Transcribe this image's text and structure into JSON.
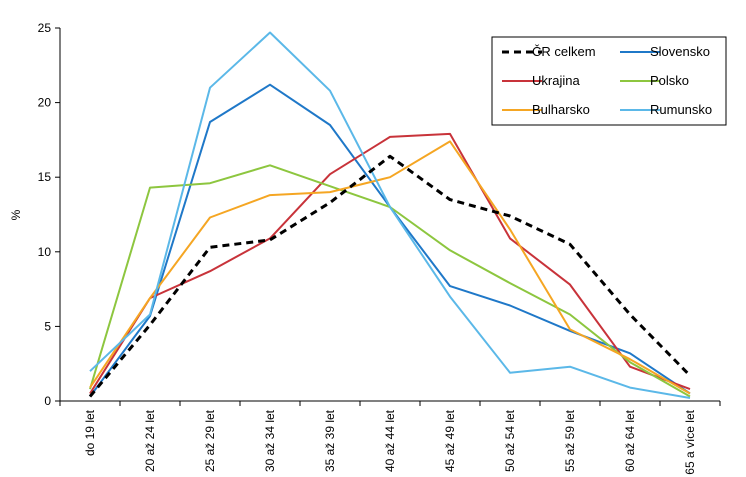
{
  "chart_data": {
    "type": "line",
    "ylabel": "%",
    "ylim": [
      0,
      25
    ],
    "yticks": [
      0,
      5,
      10,
      15,
      20,
      25
    ],
    "categories": [
      "do 19 let",
      "20 až 24 let",
      "25 až 29 let",
      "30 až 34 let",
      "35 až 39 let",
      "40 až 44 let",
      "45 až 49 let",
      "50 až 54 let",
      "55 až 59 let",
      "60 až 64 let",
      "65 a více let"
    ],
    "grid": false,
    "legend_position": "top-right",
    "series": [
      {
        "name": "ČR celkem",
        "color": "#000000",
        "dashed": true,
        "values": [
          0.3,
          5.1,
          10.3,
          10.8,
          13.3,
          16.4,
          13.5,
          12.4,
          10.5,
          5.8,
          1.7
        ]
      },
      {
        "name": "Slovensko",
        "color": "#1f78c8",
        "dashed": false,
        "values": [
          0.3,
          5.7,
          18.7,
          21.2,
          18.5,
          13.0,
          7.7,
          6.4,
          4.7,
          3.2,
          0.5
        ]
      },
      {
        "name": "Ukrajina",
        "color": "#c8333a",
        "dashed": false,
        "values": [
          0.5,
          6.9,
          8.7,
          10.9,
          15.2,
          17.7,
          17.9,
          10.9,
          7.8,
          2.3,
          0.8
        ]
      },
      {
        "name": "Polsko",
        "color": "#8dc63f",
        "dashed": false,
        "values": [
          0.8,
          14.3,
          14.6,
          15.8,
          14.4,
          13.0,
          10.1,
          7.9,
          5.8,
          2.6,
          0.3
        ]
      },
      {
        "name": "Bulharsko",
        "color": "#f5a623",
        "dashed": false,
        "values": [
          0.9,
          6.9,
          12.3,
          13.8,
          14.0,
          15.0,
          17.4,
          11.5,
          4.8,
          2.8,
          0.5
        ]
      },
      {
        "name": "Rumunsko",
        "color": "#5bb8e8",
        "dashed": false,
        "values": [
          2.0,
          5.8,
          21.0,
          24.7,
          20.8,
          13.0,
          7.0,
          1.9,
          2.3,
          0.9,
          0.2
        ]
      }
    ]
  }
}
